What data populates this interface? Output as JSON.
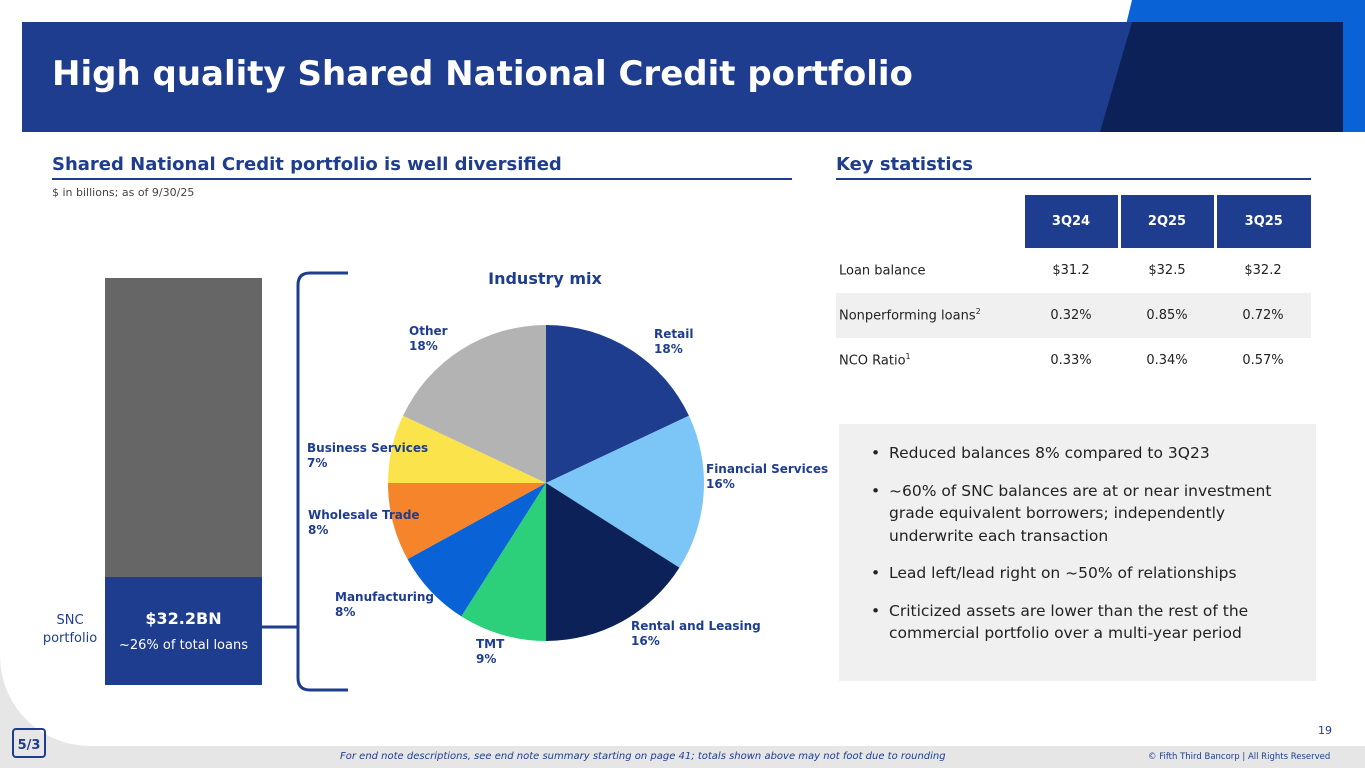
{
  "title": "High quality Shared National Credit portfolio",
  "colors": {
    "brand_blue": "#1f3d8f",
    "dark_blue": "#0b2157",
    "accent_blue": "#0a63d6",
    "bar_gray": "#666666"
  },
  "left_section": {
    "heading": "Shared National Credit portfolio is well diversified",
    "units_note": "$ in billions; as of 9/30/25",
    "snc_label_line1": "SNC",
    "snc_label_line2": "portfolio",
    "snc_amount": "$32.2BN",
    "snc_share": "~26% of total loans"
  },
  "chart_data": {
    "type": "pie",
    "title": "Industry mix",
    "start_angle_deg": 0,
    "direction": "clockwise",
    "slices": [
      {
        "label": "Retail",
        "pct_label": "18%",
        "value": 18,
        "color": "#1f3d8f"
      },
      {
        "label": "Financial Services",
        "pct_label": "16%",
        "value": 16,
        "color": "#7cc6f7"
      },
      {
        "label": "Rental and Leasing",
        "pct_label": "16%",
        "value": 16,
        "color": "#0b2157"
      },
      {
        "label": "TMT",
        "pct_label": "9%",
        "value": 9,
        "color": "#2cd07b"
      },
      {
        "label": "Manufacturing",
        "pct_label": "8%",
        "value": 8,
        "color": "#0a63d6"
      },
      {
        "label": "Wholesale Trade",
        "pct_label": "8%",
        "value": 8,
        "color": "#f5842a"
      },
      {
        "label": "Business Services",
        "pct_label": "7%",
        "value": 7,
        "color": "#fbe34c"
      },
      {
        "label": "Other",
        "pct_label": "18%",
        "value": 18,
        "color": "#b3b3b3"
      }
    ]
  },
  "key_statistics": {
    "heading": "Key statistics",
    "columns": [
      "3Q24",
      "2Q25",
      "3Q25"
    ],
    "rows": [
      {
        "label": "Loan balance",
        "sup": "",
        "values": [
          "$31.2",
          "$32.5",
          "$32.2"
        ]
      },
      {
        "label": "Nonperforming loans",
        "sup": "2",
        "values": [
          "0.32%",
          "0.85%",
          "0.72%"
        ]
      },
      {
        "label": "NCO Ratio",
        "sup": "1",
        "values": [
          "0.33%",
          "0.34%",
          "0.57%"
        ]
      }
    ]
  },
  "bullets": [
    "Reduced balances 8% compared to 3Q23",
    "~60% of SNC balances are at or near investment grade equivalent borrowers; independently underwrite each transaction",
    "Lead left/lead right on ~50% of relationships",
    "Criticized assets are lower than the rest of the commercial portfolio over a multi-year period"
  ],
  "footer": {
    "page_number": "19",
    "footnote": "For end note descriptions, see end note summary starting on page 41; totals shown above may not foot due to rounding",
    "copyright": "© Fifth Third Bancorp | All Rights Reserved"
  },
  "logo": {
    "name": "5/3",
    "text": "5/3"
  }
}
